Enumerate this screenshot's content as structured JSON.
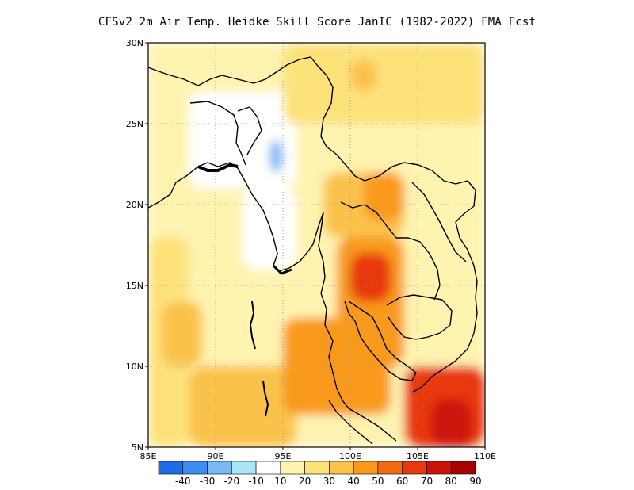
{
  "title": "CFSv2  2m Air Temp. Heidke Skill Score JanIC (1982-2022) FMA Fcst",
  "map": {
    "lon_range": [
      85,
      110
    ],
    "lat_range": [
      5,
      30
    ],
    "lon_ticks": [
      "85E",
      "90E",
      "95E",
      "100E",
      "105E",
      "110E"
    ],
    "lat_ticks": [
      "5N",
      "10N",
      "15N",
      "20N",
      "25N",
      "30N"
    ],
    "grid": "dotted"
  },
  "colorbar": {
    "labels": [
      "-40",
      "-30",
      "-20",
      "-10",
      "10",
      "20",
      "30",
      "40",
      "50",
      "60",
      "70",
      "80",
      "90"
    ],
    "colors": [
      "#1e6ce8",
      "#3c8ef0",
      "#78b8f5",
      "#a8e6f8",
      "#ffffff",
      "#fff3b0",
      "#fde27a",
      "#fbc24c",
      "#f99a1c",
      "#f46a12",
      "#e8380e",
      "#cc1208",
      "#a80000"
    ]
  },
  "chart_data": {
    "type": "heatmap",
    "title": "CFSv2  2m Air Temp. Heidke Skill Score JanIC (1982-2022) FMA Fcst",
    "xlabel": "",
    "ylabel": "",
    "xlim": [
      85,
      110
    ],
    "ylim": [
      5,
      30
    ],
    "levels": [
      -40,
      -30,
      -20,
      -10,
      10,
      20,
      30,
      40,
      50,
      60,
      70,
      80,
      90
    ],
    "regions": [
      {
        "lon": [
          85,
          110
        ],
        "lat": [
          5,
          30
        ],
        "value": 15
      },
      {
        "lon": [
          85,
          88
        ],
        "lat": [
          5,
          18
        ],
        "value": 25
      },
      {
        "lon": [
          86,
          89
        ],
        "lat": [
          10,
          14
        ],
        "value": 35
      },
      {
        "lon": [
          88,
          96
        ],
        "lat": [
          5,
          10
        ],
        "value": 35
      },
      {
        "lon": [
          95,
          103
        ],
        "lat": [
          7,
          13
        ],
        "value": 40
      },
      {
        "lon": [
          99,
          104
        ],
        "lat": [
          10,
          18
        ],
        "value": 45
      },
      {
        "lon": [
          100,
          103
        ],
        "lat": [
          14,
          17
        ],
        "value": 65
      },
      {
        "lon": [
          104,
          110
        ],
        "lat": [
          5,
          10
        ],
        "value": 60
      },
      {
        "lon": [
          106,
          109
        ],
        "lat": [
          5,
          8
        ],
        "value": 75
      },
      {
        "lon": [
          98,
          104
        ],
        "lat": [
          18,
          22
        ],
        "value": 35
      },
      {
        "lon": [
          101,
          104
        ],
        "lat": [
          19,
          22
        ],
        "value": 45
      },
      {
        "lon": [
          88,
          96
        ],
        "lat": [
          21,
          27
        ],
        "value": 5
      },
      {
        "lon": [
          92,
          96
        ],
        "lat": [
          16,
          21
        ],
        "value": 5
      },
      {
        "lon": [
          94,
          95
        ],
        "lat": [
          22,
          24
        ],
        "value": -15
      },
      {
        "lon": [
          95,
          110
        ],
        "lat": [
          25,
          30
        ],
        "value": 25
      },
      {
        "lon": [
          100,
          102
        ],
        "lat": [
          27,
          29
        ],
        "value": 35
      }
    ]
  }
}
